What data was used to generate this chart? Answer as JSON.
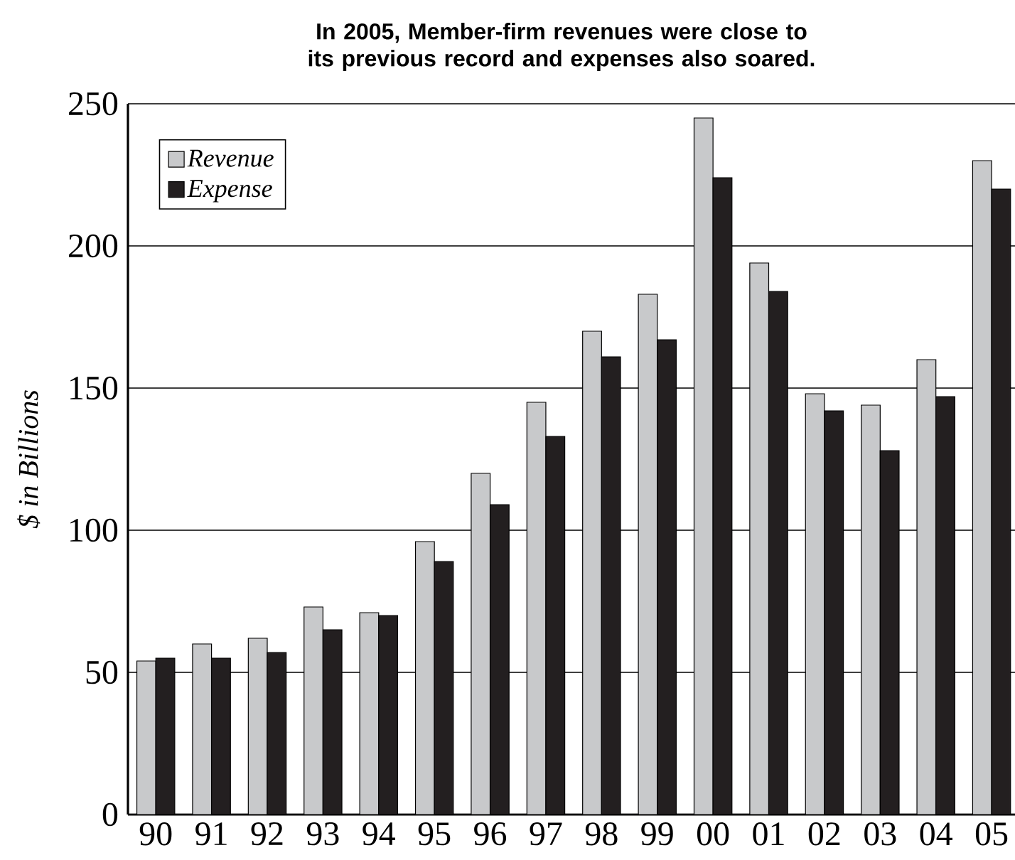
{
  "chart_data": {
    "type": "bar",
    "title": "In 2005, Member-firm revenues were close to its previous record and expenses also soared.",
    "ylabel": "$ in Billions",
    "categories": [
      "90",
      "91",
      "92",
      "93",
      "94",
      "95",
      "96",
      "97",
      "98",
      "99",
      "00",
      "01",
      "02",
      "03",
      "04",
      "05"
    ],
    "series": [
      {
        "name": "Revenue",
        "color": "#c8c9cb",
        "values": [
          54,
          60,
          62,
          73,
          71,
          96,
          120,
          145,
          170,
          183,
          245,
          194,
          148,
          144,
          160,
          230
        ]
      },
      {
        "name": "Expense",
        "color": "#231f20",
        "values": [
          55,
          55,
          57,
          65,
          70,
          89,
          109,
          133,
          161,
          167,
          224,
          184,
          142,
          128,
          147,
          220
        ]
      }
    ],
    "ylim": [
      0,
      250
    ],
    "yticks": [
      0,
      50,
      100,
      150,
      200,
      250
    ],
    "grid": "y",
    "legend": "top left"
  }
}
